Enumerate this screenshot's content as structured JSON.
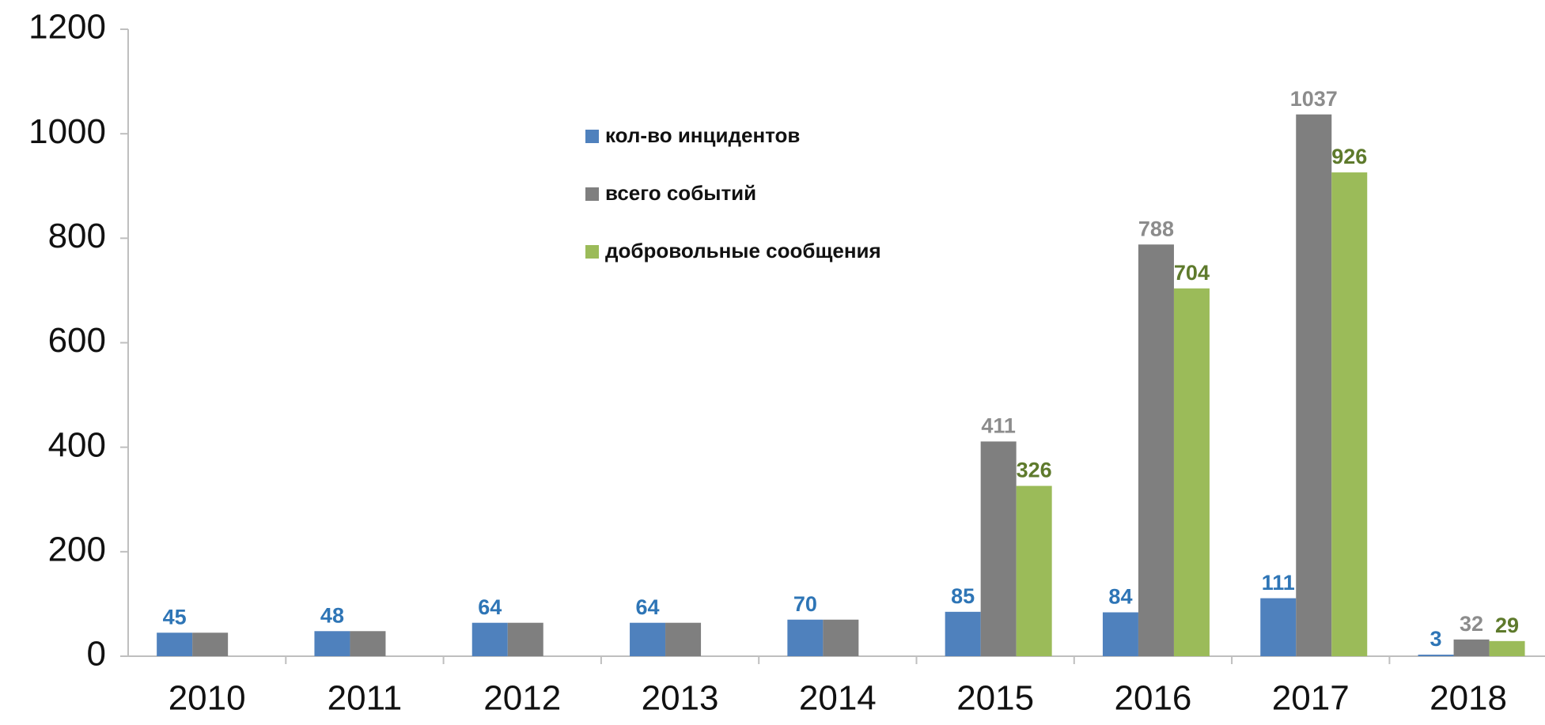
{
  "chart_data": {
    "type": "bar",
    "categories": [
      "2010",
      "2011",
      "2012",
      "2013",
      "2014",
      "2015",
      "2016",
      "2017",
      "2018"
    ],
    "series": [
      {
        "name": "кол-во инцидентов",
        "color": "#4f81bd",
        "label_color": "#2e75b6",
        "values": [
          45,
          48,
          64,
          64,
          70,
          85,
          84,
          111,
          3
        ]
      },
      {
        "name": "всего событий",
        "color": "#7f7f7f",
        "label_color": "#8c8c8c",
        "values": [
          45,
          48,
          64,
          64,
          70,
          411,
          788,
          1037,
          32
        ],
        "value_labels": [
          null,
          null,
          null,
          null,
          null,
          "411",
          "788",
          "1037",
          "32"
        ]
      },
      {
        "name": "добровольные сообщения",
        "color": "#9bbb59",
        "label_color": "#5e7a2c",
        "values": [
          null,
          null,
          null,
          null,
          null,
          326,
          704,
          926,
          29
        ]
      }
    ],
    "ylim": [
      0,
      1200
    ],
    "yticks": [
      0,
      200,
      400,
      600,
      800,
      1000,
      1200
    ],
    "grid": false
  }
}
